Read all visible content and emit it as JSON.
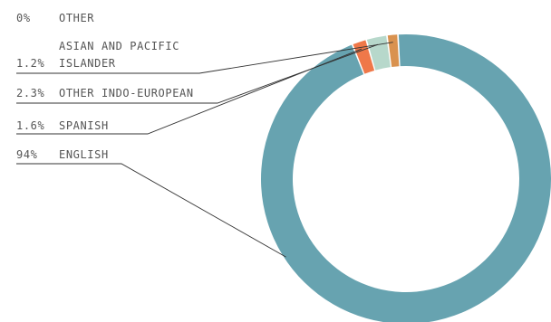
{
  "chart_data": {
    "type": "pie",
    "variant": "donut",
    "legend": "left, with leader lines",
    "slices": [
      {
        "pct_label": "94%",
        "name_lines": [
          "ENGLISH"
        ],
        "value": 94,
        "color": "#67a3b0"
      },
      {
        "pct_label": "1.6%",
        "name_lines": [
          "SPANISH"
        ],
        "value": 1.6,
        "color": "#ef7849"
      },
      {
        "pct_label": "2.3%",
        "name_lines": [
          "OTHER INDO-EUROPEAN"
        ],
        "value": 2.3,
        "color": "#b7d8cb"
      },
      {
        "pct_label": "1.2%",
        "name_lines": [
          "ASIAN AND PACIFIC",
          "ISLANDER"
        ],
        "value": 1.2,
        "color": "#d9924f"
      },
      {
        "pct_label": "0%",
        "name_lines": [
          "OTHER"
        ],
        "value": 0,
        "color": "#999999"
      }
    ]
  }
}
